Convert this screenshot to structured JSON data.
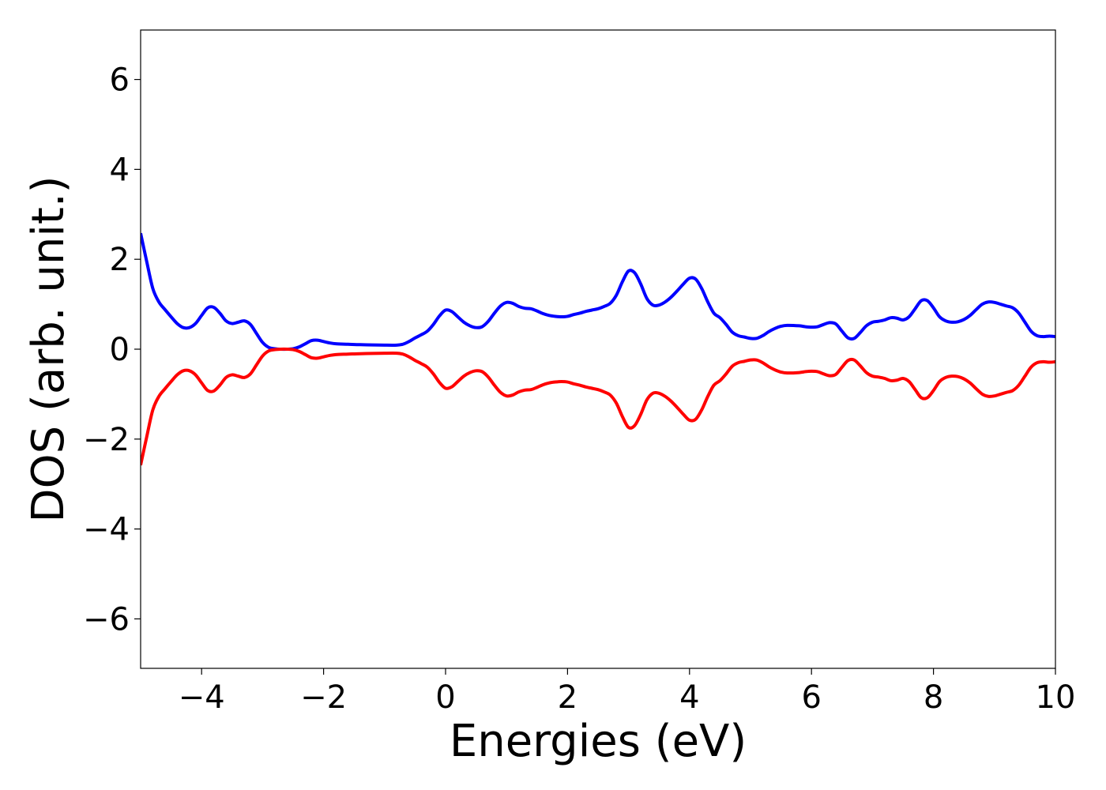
{
  "chart_data": {
    "type": "line",
    "title": "",
    "xlabel": "Energies (eV)",
    "ylabel": "DOS (arb. unit.)",
    "xlim": [
      -5,
      10
    ],
    "ylim": [
      -7.1,
      7.1
    ],
    "grid": false,
    "legend": "none",
    "xticks": [
      -4,
      -2,
      0,
      2,
      4,
      6,
      8,
      10
    ],
    "xtick_labels": [
      "−4",
      "−2",
      "0",
      "2",
      "4",
      "6",
      "8",
      "10"
    ],
    "yticks": [
      -6,
      -4,
      -2,
      0,
      2,
      4,
      6
    ],
    "ytick_labels": [
      "−6",
      "−4",
      "−2",
      "0",
      "2",
      "4",
      "6"
    ],
    "series": [
      {
        "color": "#0000ff",
        "points": [
          [
            -5.0,
            2.58
          ],
          [
            -4.9,
            1.95
          ],
          [
            -4.8,
            1.35
          ],
          [
            -4.7,
            1.05
          ],
          [
            -4.6,
            0.88
          ],
          [
            -4.5,
            0.72
          ],
          [
            -4.4,
            0.57
          ],
          [
            -4.3,
            0.48
          ],
          [
            -4.2,
            0.48
          ],
          [
            -4.1,
            0.57
          ],
          [
            -4.0,
            0.75
          ],
          [
            -3.9,
            0.92
          ],
          [
            -3.8,
            0.93
          ],
          [
            -3.7,
            0.8
          ],
          [
            -3.6,
            0.63
          ],
          [
            -3.5,
            0.57
          ],
          [
            -3.4,
            0.6
          ],
          [
            -3.3,
            0.63
          ],
          [
            -3.2,
            0.55
          ],
          [
            -3.1,
            0.35
          ],
          [
            -3.0,
            0.15
          ],
          [
            -2.9,
            0.04
          ],
          [
            -2.8,
            0.01
          ],
          [
            -2.7,
            0.0
          ],
          [
            -2.6,
            0.0
          ],
          [
            -2.5,
            0.01
          ],
          [
            -2.4,
            0.05
          ],
          [
            -2.3,
            0.12
          ],
          [
            -2.2,
            0.19
          ],
          [
            -2.1,
            0.2
          ],
          [
            -2.0,
            0.17
          ],
          [
            -1.9,
            0.14
          ],
          [
            -1.8,
            0.12
          ],
          [
            -1.6,
            0.11
          ],
          [
            -1.4,
            0.1
          ],
          [
            -1.2,
            0.095
          ],
          [
            -1.0,
            0.09
          ],
          [
            -0.8,
            0.09
          ],
          [
            -0.7,
            0.11
          ],
          [
            -0.6,
            0.17
          ],
          [
            -0.5,
            0.25
          ],
          [
            -0.4,
            0.32
          ],
          [
            -0.3,
            0.4
          ],
          [
            -0.2,
            0.55
          ],
          [
            -0.1,
            0.74
          ],
          [
            0.0,
            0.87
          ],
          [
            0.1,
            0.84
          ],
          [
            0.2,
            0.72
          ],
          [
            0.3,
            0.6
          ],
          [
            0.4,
            0.52
          ],
          [
            0.5,
            0.48
          ],
          [
            0.6,
            0.5
          ],
          [
            0.7,
            0.62
          ],
          [
            0.8,
            0.8
          ],
          [
            0.9,
            0.96
          ],
          [
            1.0,
            1.04
          ],
          [
            1.1,
            1.02
          ],
          [
            1.2,
            0.95
          ],
          [
            1.3,
            0.91
          ],
          [
            1.4,
            0.9
          ],
          [
            1.5,
            0.85
          ],
          [
            1.6,
            0.79
          ],
          [
            1.7,
            0.75
          ],
          [
            1.8,
            0.73
          ],
          [
            1.9,
            0.72
          ],
          [
            2.0,
            0.73
          ],
          [
            2.1,
            0.77
          ],
          [
            2.2,
            0.8
          ],
          [
            2.3,
            0.84
          ],
          [
            2.4,
            0.87
          ],
          [
            2.5,
            0.9
          ],
          [
            2.6,
            0.95
          ],
          [
            2.7,
            1.02
          ],
          [
            2.8,
            1.2
          ],
          [
            2.9,
            1.5
          ],
          [
            3.0,
            1.74
          ],
          [
            3.1,
            1.7
          ],
          [
            3.2,
            1.45
          ],
          [
            3.3,
            1.13
          ],
          [
            3.4,
            0.98
          ],
          [
            3.5,
            0.98
          ],
          [
            3.6,
            1.05
          ],
          [
            3.7,
            1.16
          ],
          [
            3.8,
            1.3
          ],
          [
            3.9,
            1.45
          ],
          [
            4.0,
            1.58
          ],
          [
            4.1,
            1.56
          ],
          [
            4.2,
            1.35
          ],
          [
            4.3,
            1.05
          ],
          [
            4.4,
            0.8
          ],
          [
            4.5,
            0.7
          ],
          [
            4.6,
            0.55
          ],
          [
            4.7,
            0.38
          ],
          [
            4.8,
            0.3
          ],
          [
            4.9,
            0.27
          ],
          [
            5.0,
            0.24
          ],
          [
            5.1,
            0.24
          ],
          [
            5.2,
            0.3
          ],
          [
            5.3,
            0.39
          ],
          [
            5.4,
            0.46
          ],
          [
            5.5,
            0.51
          ],
          [
            5.6,
            0.53
          ],
          [
            5.8,
            0.52
          ],
          [
            5.9,
            0.5
          ],
          [
            6.0,
            0.49
          ],
          [
            6.1,
            0.5
          ],
          [
            6.2,
            0.55
          ],
          [
            6.3,
            0.59
          ],
          [
            6.4,
            0.56
          ],
          [
            6.5,
            0.4
          ],
          [
            6.6,
            0.25
          ],
          [
            6.7,
            0.24
          ],
          [
            6.8,
            0.37
          ],
          [
            6.9,
            0.52
          ],
          [
            7.0,
            0.6
          ],
          [
            7.1,
            0.62
          ],
          [
            7.2,
            0.65
          ],
          [
            7.3,
            0.7
          ],
          [
            7.4,
            0.69
          ],
          [
            7.5,
            0.65
          ],
          [
            7.6,
            0.72
          ],
          [
            7.7,
            0.9
          ],
          [
            7.8,
            1.08
          ],
          [
            7.9,
            1.08
          ],
          [
            8.0,
            0.92
          ],
          [
            8.1,
            0.72
          ],
          [
            8.2,
            0.63
          ],
          [
            8.3,
            0.6
          ],
          [
            8.4,
            0.61
          ],
          [
            8.5,
            0.66
          ],
          [
            8.6,
            0.75
          ],
          [
            8.7,
            0.88
          ],
          [
            8.8,
            1.0
          ],
          [
            8.9,
            1.05
          ],
          [
            9.0,
            1.04
          ],
          [
            9.1,
            1.0
          ],
          [
            9.2,
            0.96
          ],
          [
            9.3,
            0.92
          ],
          [
            9.4,
            0.8
          ],
          [
            9.5,
            0.6
          ],
          [
            9.6,
            0.4
          ],
          [
            9.7,
            0.3
          ],
          [
            9.8,
            0.28
          ],
          [
            9.9,
            0.29
          ],
          [
            10.0,
            0.28
          ]
        ]
      },
      {
        "color": "#ff0000",
        "points": [
          [
            -5.0,
            -2.58
          ],
          [
            -4.9,
            -1.95
          ],
          [
            -4.8,
            -1.35
          ],
          [
            -4.7,
            -1.05
          ],
          [
            -4.6,
            -0.88
          ],
          [
            -4.5,
            -0.72
          ],
          [
            -4.4,
            -0.57
          ],
          [
            -4.3,
            -0.48
          ],
          [
            -4.2,
            -0.48
          ],
          [
            -4.1,
            -0.57
          ],
          [
            -4.0,
            -0.75
          ],
          [
            -3.9,
            -0.92
          ],
          [
            -3.8,
            -0.93
          ],
          [
            -3.7,
            -0.8
          ],
          [
            -3.6,
            -0.63
          ],
          [
            -3.5,
            -0.57
          ],
          [
            -3.4,
            -0.6
          ],
          [
            -3.3,
            -0.63
          ],
          [
            -3.2,
            -0.55
          ],
          [
            -3.1,
            -0.35
          ],
          [
            -3.0,
            -0.15
          ],
          [
            -2.9,
            -0.04
          ],
          [
            -2.8,
            -0.01
          ],
          [
            -2.7,
            0.0
          ],
          [
            -2.6,
            0.0
          ],
          [
            -2.5,
            -0.01
          ],
          [
            -2.4,
            -0.05
          ],
          [
            -2.3,
            -0.12
          ],
          [
            -2.2,
            -0.19
          ],
          [
            -2.1,
            -0.2
          ],
          [
            -2.0,
            -0.17
          ],
          [
            -1.9,
            -0.14
          ],
          [
            -1.8,
            -0.12
          ],
          [
            -1.6,
            -0.11
          ],
          [
            -1.4,
            -0.1
          ],
          [
            -1.2,
            -0.095
          ],
          [
            -1.0,
            -0.09
          ],
          [
            -0.8,
            -0.09
          ],
          [
            -0.7,
            -0.11
          ],
          [
            -0.6,
            -0.17
          ],
          [
            -0.5,
            -0.25
          ],
          [
            -0.4,
            -0.32
          ],
          [
            -0.3,
            -0.4
          ],
          [
            -0.2,
            -0.55
          ],
          [
            -0.1,
            -0.74
          ],
          [
            0.0,
            -0.87
          ],
          [
            0.1,
            -0.84
          ],
          [
            0.2,
            -0.72
          ],
          [
            0.3,
            -0.6
          ],
          [
            0.4,
            -0.52
          ],
          [
            0.5,
            -0.48
          ],
          [
            0.6,
            -0.5
          ],
          [
            0.7,
            -0.62
          ],
          [
            0.8,
            -0.8
          ],
          [
            0.9,
            -0.96
          ],
          [
            1.0,
            -1.04
          ],
          [
            1.1,
            -1.02
          ],
          [
            1.2,
            -0.95
          ],
          [
            1.3,
            -0.91
          ],
          [
            1.4,
            -0.9
          ],
          [
            1.5,
            -0.85
          ],
          [
            1.6,
            -0.79
          ],
          [
            1.7,
            -0.75
          ],
          [
            1.8,
            -0.73
          ],
          [
            1.9,
            -0.72
          ],
          [
            2.0,
            -0.73
          ],
          [
            2.1,
            -0.77
          ],
          [
            2.2,
            -0.8
          ],
          [
            2.3,
            -0.84
          ],
          [
            2.4,
            -0.87
          ],
          [
            2.5,
            -0.9
          ],
          [
            2.6,
            -0.95
          ],
          [
            2.7,
            -1.02
          ],
          [
            2.8,
            -1.2
          ],
          [
            2.9,
            -1.5
          ],
          [
            3.0,
            -1.74
          ],
          [
            3.1,
            -1.7
          ],
          [
            3.2,
            -1.45
          ],
          [
            3.3,
            -1.13
          ],
          [
            3.4,
            -0.98
          ],
          [
            3.5,
            -0.98
          ],
          [
            3.6,
            -1.05
          ],
          [
            3.7,
            -1.16
          ],
          [
            3.8,
            -1.3
          ],
          [
            3.9,
            -1.45
          ],
          [
            4.0,
            -1.58
          ],
          [
            4.1,
            -1.56
          ],
          [
            4.2,
            -1.35
          ],
          [
            4.3,
            -1.05
          ],
          [
            4.4,
            -0.8
          ],
          [
            4.5,
            -0.7
          ],
          [
            4.6,
            -0.55
          ],
          [
            4.7,
            -0.38
          ],
          [
            4.8,
            -0.3
          ],
          [
            4.9,
            -0.27
          ],
          [
            5.0,
            -0.24
          ],
          [
            5.1,
            -0.24
          ],
          [
            5.2,
            -0.3
          ],
          [
            5.3,
            -0.39
          ],
          [
            5.4,
            -0.46
          ],
          [
            5.5,
            -0.51
          ],
          [
            5.6,
            -0.53
          ],
          [
            5.8,
            -0.52
          ],
          [
            5.9,
            -0.5
          ],
          [
            6.0,
            -0.49
          ],
          [
            6.1,
            -0.5
          ],
          [
            6.2,
            -0.55
          ],
          [
            6.3,
            -0.59
          ],
          [
            6.4,
            -0.56
          ],
          [
            6.5,
            -0.4
          ],
          [
            6.6,
            -0.25
          ],
          [
            6.7,
            -0.24
          ],
          [
            6.8,
            -0.37
          ],
          [
            6.9,
            -0.52
          ],
          [
            7.0,
            -0.6
          ],
          [
            7.1,
            -0.62
          ],
          [
            7.2,
            -0.65
          ],
          [
            7.3,
            -0.7
          ],
          [
            7.4,
            -0.69
          ],
          [
            7.5,
            -0.65
          ],
          [
            7.6,
            -0.72
          ],
          [
            7.7,
            -0.9
          ],
          [
            7.8,
            -1.08
          ],
          [
            7.9,
            -1.08
          ],
          [
            8.0,
            -0.92
          ],
          [
            8.1,
            -0.72
          ],
          [
            8.2,
            -0.63
          ],
          [
            8.3,
            -0.6
          ],
          [
            8.4,
            -0.61
          ],
          [
            8.5,
            -0.66
          ],
          [
            8.6,
            -0.75
          ],
          [
            8.7,
            -0.88
          ],
          [
            8.8,
            -1.0
          ],
          [
            8.9,
            -1.05
          ],
          [
            9.0,
            -1.04
          ],
          [
            9.1,
            -1.0
          ],
          [
            9.2,
            -0.96
          ],
          [
            9.3,
            -0.92
          ],
          [
            9.4,
            -0.8
          ],
          [
            9.5,
            -0.6
          ],
          [
            9.6,
            -0.4
          ],
          [
            9.7,
            -0.3
          ],
          [
            9.8,
            -0.28
          ],
          [
            9.9,
            -0.29
          ],
          [
            10.0,
            -0.28
          ]
        ]
      }
    ]
  }
}
